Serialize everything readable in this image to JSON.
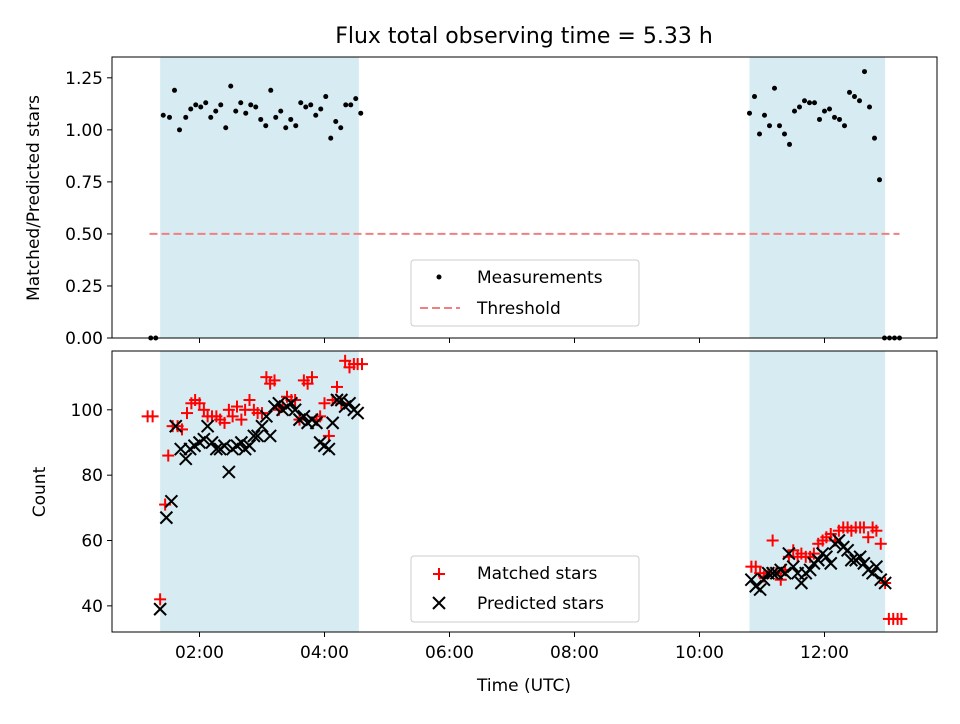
{
  "chart_data": [
    {
      "type": "scatter",
      "title": "Flux total observing time = 5.33 h",
      "xlabel": "",
      "ylabel": "Matched/Predicted stars",
      "xlim": [
        0.6,
        13.8
      ],
      "ylim": [
        0.0,
        1.35
      ],
      "yticks": [
        0.0,
        0.25,
        0.5,
        0.75,
        1.0,
        1.25
      ],
      "ytick_labels": [
        "0.00",
        "0.25",
        "0.50",
        "0.75",
        "1.00",
        "1.25"
      ],
      "xticks": [
        2,
        4,
        6,
        8,
        10,
        12
      ],
      "shaded_spans": [
        [
          1.37,
          4.55
        ],
        [
          10.8,
          12.97
        ]
      ],
      "threshold": {
        "name": "Threshold",
        "value": 0.5,
        "x_range": [
          1.2,
          13.2
        ],
        "color": "#f08080"
      },
      "legend": [
        "Measurements",
        "Threshold"
      ],
      "series": [
        {
          "name": "Measurements",
          "color": "#000000",
          "x": [
            1.22,
            1.3,
            1.42,
            1.52,
            1.6,
            1.68,
            1.78,
            1.86,
            1.94,
            2.02,
            2.1,
            2.18,
            2.26,
            2.34,
            2.42,
            2.5,
            2.58,
            2.66,
            2.74,
            2.82,
            2.9,
            2.98,
            3.06,
            3.14,
            3.22,
            3.3,
            3.38,
            3.46,
            3.54,
            3.62,
            3.7,
            3.78,
            3.86,
            3.94,
            4.02,
            4.1,
            4.18,
            4.26,
            4.34,
            4.42,
            4.5,
            4.58,
            10.8,
            10.88,
            10.96,
            11.04,
            11.12,
            11.2,
            11.28,
            11.36,
            11.44,
            11.52,
            11.6,
            11.68,
            11.76,
            11.84,
            11.92,
            12.0,
            12.08,
            12.16,
            12.24,
            12.32,
            12.4,
            12.48,
            12.56,
            12.64,
            12.72,
            12.8,
            12.88,
            12.96,
            13.04,
            13.12,
            13.2
          ],
          "y": [
            0.0,
            0.0,
            1.07,
            1.06,
            1.19,
            1.0,
            1.06,
            1.1,
            1.12,
            1.11,
            1.13,
            1.06,
            1.09,
            1.12,
            1.01,
            1.21,
            1.09,
            1.13,
            1.08,
            1.12,
            1.11,
            1.05,
            1.02,
            1.19,
            1.06,
            1.09,
            1.01,
            1.05,
            1.02,
            1.13,
            1.11,
            1.12,
            1.07,
            1.1,
            1.16,
            0.96,
            1.04,
            1.01,
            1.12,
            1.12,
            1.15,
            1.08,
            1.08,
            1.16,
            0.98,
            1.07,
            1.02,
            1.2,
            1.02,
            0.98,
            0.93,
            1.09,
            1.11,
            1.14,
            1.13,
            1.13,
            1.05,
            1.09,
            1.1,
            1.06,
            1.05,
            1.02,
            1.18,
            1.16,
            1.14,
            1.28,
            1.11,
            0.96,
            0.76,
            0.0,
            0.0,
            0.0,
            0.0
          ]
        }
      ]
    },
    {
      "type": "scatter",
      "title": "",
      "xlabel": "Time (UTC)",
      "ylabel": "Count",
      "xlim": [
        0.6,
        13.8
      ],
      "ylim": [
        32,
        118
      ],
      "yticks": [
        40,
        60,
        80,
        100
      ],
      "ytick_labels": [
        "40",
        "60",
        "80",
        "100"
      ],
      "xticks": [
        2,
        4,
        6,
        8,
        10,
        12
      ],
      "xtick_labels": [
        "02:00",
        "04:00",
        "06:00",
        "08:00",
        "10:00",
        "12:00"
      ],
      "shaded_spans": [
        [
          1.37,
          4.55
        ],
        [
          10.8,
          12.97
        ]
      ],
      "legend": [
        "Matched stars",
        "Predicted stars"
      ],
      "series": [
        {
          "name": "Matched stars",
          "marker": "+",
          "color": "#ff0000",
          "x": [
            1.17,
            1.25,
            1.37,
            1.45,
            1.5,
            1.57,
            1.65,
            1.72,
            1.8,
            1.87,
            1.93,
            2.0,
            2.07,
            2.13,
            2.2,
            2.27,
            2.33,
            2.4,
            2.47,
            2.53,
            2.6,
            2.67,
            2.73,
            2.8,
            2.87,
            2.93,
            3.0,
            3.07,
            3.13,
            3.2,
            3.27,
            3.33,
            3.4,
            3.47,
            3.53,
            3.6,
            3.67,
            3.73,
            3.8,
            3.87,
            3.93,
            4.0,
            4.07,
            4.13,
            4.2,
            4.27,
            4.33,
            4.4,
            4.47,
            4.53,
            4.6,
            10.83,
            10.9,
            10.97,
            11.03,
            11.1,
            11.17,
            11.23,
            11.3,
            11.37,
            11.43,
            11.5,
            11.57,
            11.63,
            11.7,
            11.77,
            11.83,
            11.9,
            11.97,
            12.03,
            12.1,
            12.17,
            12.23,
            12.3,
            12.37,
            12.43,
            12.5,
            12.57,
            12.63,
            12.7,
            12.77,
            12.83,
            12.9,
            12.97,
            13.03,
            13.1,
            13.17,
            13.23
          ],
          "y": [
            98,
            98,
            42,
            71,
            86,
            95,
            95,
            94,
            99,
            102,
            103,
            102,
            100,
            98,
            98,
            98,
            97,
            96,
            100,
            98,
            101,
            97,
            100,
            103,
            100,
            99,
            99,
            110,
            108,
            109,
            100,
            101,
            104,
            103,
            103,
            97,
            109,
            108,
            110,
            97,
            98,
            102,
            92,
            103,
            107,
            102,
            115,
            113,
            114,
            114,
            114,
            52,
            52,
            50,
            49,
            50,
            60,
            50,
            48,
            51,
            55,
            57,
            55,
            56,
            55,
            55,
            56,
            59,
            60,
            61,
            62,
            60,
            63,
            64,
            64,
            63,
            64,
            64,
            64,
            61,
            64,
            63,
            59,
            47,
            36,
            36,
            36,
            36
          ]
        },
        {
          "name": "Predicted stars",
          "marker": "x",
          "color": "#000000",
          "x": [
            1.37,
            1.47,
            1.55,
            1.62,
            1.7,
            1.78,
            1.85,
            1.92,
            2.0,
            2.07,
            2.13,
            2.2,
            2.27,
            2.33,
            2.4,
            2.47,
            2.53,
            2.6,
            2.67,
            2.73,
            2.8,
            2.87,
            2.93,
            3.0,
            3.07,
            3.13,
            3.2,
            3.27,
            3.33,
            3.4,
            3.47,
            3.53,
            3.6,
            3.67,
            3.73,
            3.8,
            3.87,
            3.93,
            4.0,
            4.07,
            4.13,
            4.2,
            4.27,
            4.33,
            4.4,
            4.47,
            4.53,
            10.83,
            10.9,
            10.97,
            11.03,
            11.1,
            11.17,
            11.23,
            11.3,
            11.37,
            11.43,
            11.5,
            11.57,
            11.63,
            11.7,
            11.77,
            11.83,
            11.9,
            11.97,
            12.03,
            12.1,
            12.17,
            12.23,
            12.3,
            12.37,
            12.43,
            12.5,
            12.57,
            12.63,
            12.7,
            12.77,
            12.83,
            12.9,
            12.97
          ],
          "y": [
            39,
            67,
            72,
            95,
            88,
            85,
            88,
            89,
            90,
            91,
            95,
            90,
            88,
            88,
            89,
            81,
            88,
            89,
            90,
            88,
            89,
            92,
            92,
            95,
            98,
            92,
            101,
            102,
            100,
            101,
            102,
            100,
            97,
            98,
            96,
            97,
            96,
            90,
            89,
            88,
            96,
            103,
            103,
            101,
            102,
            100,
            99,
            48,
            46,
            45,
            48,
            50,
            50,
            50,
            51,
            50,
            56,
            52,
            50,
            47,
            50,
            51,
            53,
            54,
            56,
            55,
            53,
            59,
            60,
            58,
            57,
            54,
            54,
            55,
            53,
            51,
            50,
            52,
            48,
            47
          ]
        }
      ]
    }
  ]
}
